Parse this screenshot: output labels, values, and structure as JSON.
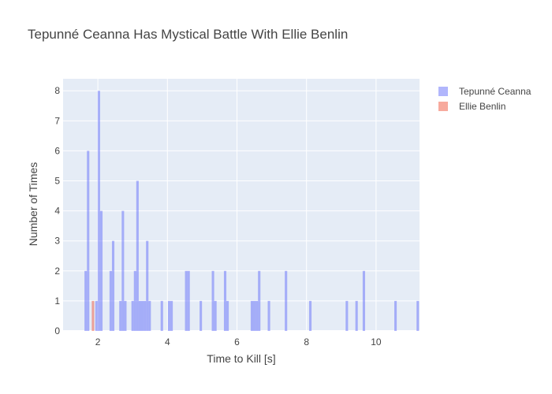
{
  "chart_data": {
    "type": "bar",
    "title": "Tepunné Ceanna Has Mystical Battle With Ellie Benlin",
    "xlabel": "Time to Kill [s]",
    "ylabel": "Number of Times",
    "xlim": [
      1.0,
      11.25
    ],
    "ylim": [
      0,
      8.4
    ],
    "x_ticks": [
      2,
      4,
      6,
      8,
      10
    ],
    "y_ticks": [
      0,
      1,
      2,
      3,
      4,
      5,
      6,
      7,
      8
    ],
    "bin_width": 0.07,
    "grid": true,
    "legend_position": "top-right",
    "series": [
      {
        "name": "Tepunné Ceanna",
        "color": "#636efa",
        "opacity": 0.5,
        "x": [
          1.65,
          1.72,
          1.96,
          2.03,
          2.1,
          2.37,
          2.44,
          2.65,
          2.72,
          2.79,
          3.0,
          3.07,
          3.14,
          3.21,
          3.28,
          3.35,
          3.42,
          3.49,
          3.84,
          4.05,
          4.12,
          4.54,
          4.61,
          4.96,
          5.31,
          5.38,
          5.66,
          5.73,
          6.43,
          6.5,
          6.57,
          6.64,
          6.92,
          7.41,
          8.11,
          9.16,
          9.44,
          9.65,
          10.56,
          11.2
        ],
        "values": [
          2,
          6,
          1,
          8,
          4,
          2,
          3,
          1,
          4,
          1,
          1,
          2,
          5,
          1,
          1,
          1,
          3,
          1,
          1,
          1,
          1,
          2,
          2,
          1,
          2,
          1,
          2,
          1,
          1,
          1,
          1,
          2,
          1,
          2,
          1,
          1,
          1,
          2,
          1,
          1
        ]
      },
      {
        "name": "Ellie Benlin",
        "color": "#ef553b",
        "opacity": 0.5,
        "x": [
          1.86
        ],
        "values": [
          1
        ]
      }
    ]
  }
}
